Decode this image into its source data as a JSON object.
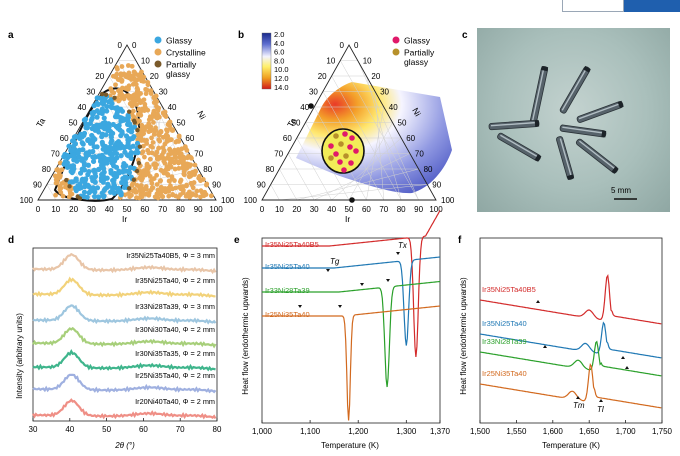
{
  "figure": {
    "panels": {
      "a": {
        "label": "a",
        "legend": [
          "Glassy",
          "Crystalline",
          "Partially glassy"
        ],
        "axis_ta": "Ta",
        "axis_ni": "Ni",
        "axis_ir": "Ir",
        "ticks": [
          "0",
          "10",
          "20",
          "30",
          "40",
          "50",
          "60",
          "70",
          "80",
          "90",
          "100"
        ]
      },
      "b": {
        "label": "b",
        "legend": [
          "Glassy",
          "Partially glassy"
        ],
        "colorbar_ticks": [
          "2.0",
          "4.0",
          "6.0",
          "8.0",
          "10.0",
          "12.0",
          "14.0"
        ],
        "axis_ta": "Ta",
        "axis_ni": "Ni",
        "axis_ir": "Ir"
      },
      "c": {
        "label": "c",
        "scale_bar": "5 mm"
      },
      "d": {
        "label": "d",
        "ylabel": "Intensity (arbitrary units)",
        "xlabel": "2θ (°)",
        "xticks": [
          "30",
          "40",
          "50",
          "60",
          "70",
          "80"
        ],
        "samples": [
          "Ir35Ni25Ta40B5, Φ = 3 mm",
          "Ir35Ni25Ta40, Φ = 2 mm",
          "Ir33Ni28Ta39, Φ = 3 mm",
          "Ir30Ni30Ta40, Φ = 2 mm",
          "Ir30Ni35Ta35, Φ = 2 mm",
          "Ir25Ni35Ta40, Φ = 2 mm",
          "Ir20Ni40Ta40, Φ = 2 mm"
        ]
      },
      "e": {
        "label": "e",
        "ylabel": "Heat flow (endothermic upwards)",
        "xlabel": "Temperature (K)",
        "xticks": [
          "1,000",
          "1,100",
          "1,200",
          "1,300",
          "1,370"
        ],
        "series": [
          "Ir35Ni25Ta40B5",
          "Ir35Ni25Ta40",
          "Ir33Ni28Ta39",
          "Ir25Ni35Ta40"
        ],
        "annotations": [
          "Tg",
          "Tx"
        ]
      },
      "f": {
        "label": "f",
        "ylabel": "Heat flow (endothermic upwards)",
        "xlabel": "Temperature (K)",
        "xticks": [
          "1,500",
          "1,550",
          "1,600",
          "1,650",
          "1,700",
          "1,750"
        ],
        "series": [
          "Ir35Ni25Ta40B5",
          "Ir35Ni25Ta40",
          "Ir33Ni28Ta39",
          "Ir25Ni35Ta40"
        ],
        "annotations": [
          "Tm",
          "Tl"
        ]
      }
    },
    "colors": {
      "glassy": "#3ba7e0",
      "crystalline": "#e8a857",
      "partially": "#7a5a2a",
      "red": "#d32b2b",
      "blue": "#1f78b4",
      "green": "#2aa02a",
      "orange": "#d2691e"
    }
  }
}
